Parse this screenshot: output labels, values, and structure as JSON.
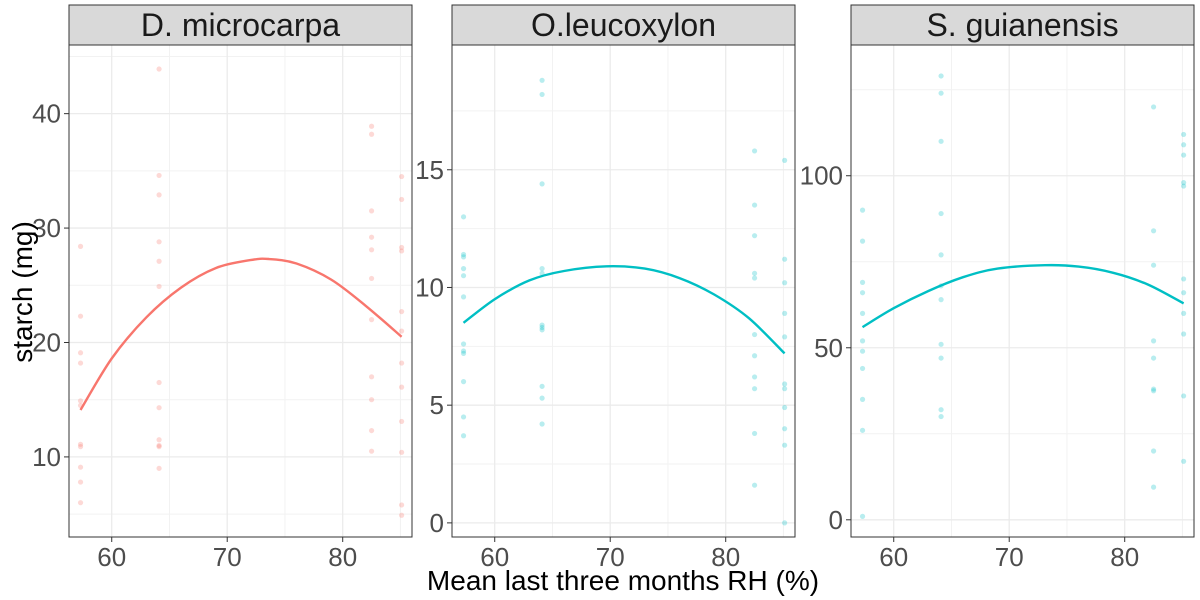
{
  "xlabel": "Mean last three months RH (%)",
  "ylabel": "starch (mg)",
  "colors": {
    "D. microcarpa": "#F8766D",
    "O.leucoxylon": "#00BFC4",
    "S. guianensis": "#00BFC4",
    "panel_bg": "#ffffff",
    "strip_bg": "#d9d9d9",
    "grid": "#ebebeb"
  },
  "chart_data": [
    {
      "type": "scatter",
      "title": "D. microcarpa",
      "xlim": [
        56.3,
        86.0
      ],
      "ylim": [
        3.0,
        46.0
      ],
      "xticks": [
        60,
        70,
        80
      ],
      "yticks": [
        10,
        20,
        30,
        40
      ],
      "points": [
        [
          57.3,
          28.4
        ],
        [
          57.3,
          22.3
        ],
        [
          57.3,
          19.1
        ],
        [
          57.3,
          18.2
        ],
        [
          57.3,
          14.9
        ],
        [
          57.3,
          14.5
        ],
        [
          57.3,
          11.1
        ],
        [
          57.3,
          10.9
        ],
        [
          57.3,
          9.1
        ],
        [
          57.3,
          7.8
        ],
        [
          57.3,
          6.0
        ],
        [
          64.1,
          43.9
        ],
        [
          64.1,
          34.6
        ],
        [
          64.1,
          32.9
        ],
        [
          64.1,
          28.8
        ],
        [
          64.1,
          27.1
        ],
        [
          64.1,
          24.9
        ],
        [
          64.1,
          16.5
        ],
        [
          64.1,
          14.3
        ],
        [
          64.1,
          11.5
        ],
        [
          64.1,
          11.0
        ],
        [
          64.1,
          10.9
        ],
        [
          64.1,
          9.0
        ],
        [
          82.5,
          38.9
        ],
        [
          82.5,
          38.2
        ],
        [
          82.5,
          31.5
        ],
        [
          82.5,
          29.2
        ],
        [
          82.5,
          28.1
        ],
        [
          82.5,
          25.6
        ],
        [
          82.5,
          22.0
        ],
        [
          82.5,
          17.0
        ],
        [
          82.5,
          15.0
        ],
        [
          82.5,
          12.3
        ],
        [
          82.5,
          10.5
        ],
        [
          85.1,
          34.5
        ],
        [
          85.1,
          32.5
        ],
        [
          85.1,
          28.3
        ],
        [
          85.1,
          28.0
        ],
        [
          85.1,
          22.7
        ],
        [
          85.1,
          21.0
        ],
        [
          85.1,
          18.2
        ],
        [
          85.1,
          16.1
        ],
        [
          85.1,
          13.1
        ],
        [
          85.1,
          10.4
        ],
        [
          85.1,
          5.8
        ],
        [
          85.1,
          4.9
        ]
      ],
      "fit_curve": [
        [
          57.3,
          14.1
        ],
        [
          60,
          18.6
        ],
        [
          63,
          22.2
        ],
        [
          66,
          24.8
        ],
        [
          69,
          26.5
        ],
        [
          72,
          27.2
        ],
        [
          73.6,
          27.3
        ],
        [
          76,
          26.9
        ],
        [
          79,
          25.5
        ],
        [
          82,
          23.2
        ],
        [
          85.1,
          20.5
        ]
      ]
    },
    {
      "type": "scatter",
      "title": "O.leucoxylon",
      "xlim": [
        56.3,
        86.0
      ],
      "ylim": [
        -0.6,
        20.3
      ],
      "xticks": [
        60,
        70,
        80
      ],
      "yticks": [
        0,
        5,
        10,
        15
      ],
      "points": [
        [
          57.3,
          13.0
        ],
        [
          57.3,
          11.4
        ],
        [
          57.3,
          11.3
        ],
        [
          57.3,
          10.8
        ],
        [
          57.3,
          10.5
        ],
        [
          57.3,
          9.6
        ],
        [
          57.3,
          7.6
        ],
        [
          57.3,
          7.3
        ],
        [
          57.3,
          7.2
        ],
        [
          57.3,
          6.0
        ],
        [
          57.3,
          4.5
        ],
        [
          57.3,
          3.7
        ],
        [
          64.1,
          18.8
        ],
        [
          64.1,
          18.2
        ],
        [
          64.1,
          14.4
        ],
        [
          64.1,
          10.8
        ],
        [
          64.1,
          10.6
        ],
        [
          64.1,
          8.4
        ],
        [
          64.1,
          8.3
        ],
        [
          64.1,
          8.2
        ],
        [
          64.1,
          5.8
        ],
        [
          64.1,
          5.3
        ],
        [
          64.1,
          4.2
        ],
        [
          82.5,
          15.8
        ],
        [
          82.5,
          13.5
        ],
        [
          82.5,
          12.2
        ],
        [
          82.5,
          10.6
        ],
        [
          82.5,
          10.4
        ],
        [
          82.5,
          8.0
        ],
        [
          82.5,
          7.1
        ],
        [
          82.5,
          6.2
        ],
        [
          82.5,
          5.7
        ],
        [
          82.5,
          3.8
        ],
        [
          82.5,
          1.6
        ],
        [
          85.1,
          15.4
        ],
        [
          85.1,
          11.2
        ],
        [
          85.1,
          10.2
        ],
        [
          85.1,
          8.9
        ],
        [
          85.1,
          7.9
        ],
        [
          85.1,
          5.9
        ],
        [
          85.1,
          5.7
        ],
        [
          85.1,
          4.9
        ],
        [
          85.1,
          4.0
        ],
        [
          85.1,
          3.3
        ],
        [
          85.1,
          0.0
        ]
      ],
      "fit_curve": [
        [
          57.3,
          8.5
        ],
        [
          60,
          9.5
        ],
        [
          63,
          10.3
        ],
        [
          66,
          10.7
        ],
        [
          69.7,
          10.9
        ],
        [
          73,
          10.8
        ],
        [
          76,
          10.4
        ],
        [
          79,
          9.7
        ],
        [
          82,
          8.7
        ],
        [
          85.1,
          7.2
        ]
      ]
    },
    {
      "type": "scatter",
      "title": "S. guianensis",
      "xlim": [
        56.3,
        86.0
      ],
      "ylim": [
        -5.0,
        138.0
      ],
      "xticks": [
        60,
        70,
        80
      ],
      "yticks": [
        0,
        50,
        100
      ],
      "points": [
        [
          57.3,
          90.0
        ],
        [
          57.3,
          81.0
        ],
        [
          57.3,
          69.0
        ],
        [
          57.3,
          66.0
        ],
        [
          57.3,
          60.0
        ],
        [
          57.3,
          52.0
        ],
        [
          57.3,
          49.0
        ],
        [
          57.3,
          44.0
        ],
        [
          57.3,
          35.0
        ],
        [
          57.3,
          26.0
        ],
        [
          57.3,
          1.0
        ],
        [
          64.1,
          129.0
        ],
        [
          64.1,
          124.0
        ],
        [
          64.1,
          110.0
        ],
        [
          64.1,
          89.0
        ],
        [
          64.1,
          77.0
        ],
        [
          64.1,
          68.0
        ],
        [
          64.1,
          64.0
        ],
        [
          64.1,
          51.0
        ],
        [
          64.1,
          47.0
        ],
        [
          64.1,
          32.0
        ],
        [
          64.1,
          30.0
        ],
        [
          82.5,
          120.0
        ],
        [
          82.5,
          84.0
        ],
        [
          82.5,
          74.0
        ],
        [
          82.5,
          52.0
        ],
        [
          82.5,
          47.0
        ],
        [
          82.5,
          38.0
        ],
        [
          82.5,
          37.5
        ],
        [
          82.5,
          20.0
        ],
        [
          82.5,
          9.5
        ],
        [
          85.1,
          112.0
        ],
        [
          85.1,
          109.0
        ],
        [
          85.1,
          106.0
        ],
        [
          85.1,
          98.0
        ],
        [
          85.1,
          97.0
        ],
        [
          85.1,
          70.0
        ],
        [
          85.1,
          66.0
        ],
        [
          85.1,
          60.0
        ],
        [
          85.1,
          54.0
        ],
        [
          85.1,
          36.0
        ],
        [
          85.1,
          17.0
        ]
      ],
      "fit_curve": [
        [
          57.3,
          56.0
        ],
        [
          60,
          61.5
        ],
        [
          63,
          66.5
        ],
        [
          66,
          70.5
        ],
        [
          69,
          73.0
        ],
        [
          73.1,
          74.0
        ],
        [
          76,
          73.6
        ],
        [
          79,
          71.8
        ],
        [
          82,
          68.4
        ],
        [
          85.1,
          62.9
        ]
      ]
    }
  ]
}
